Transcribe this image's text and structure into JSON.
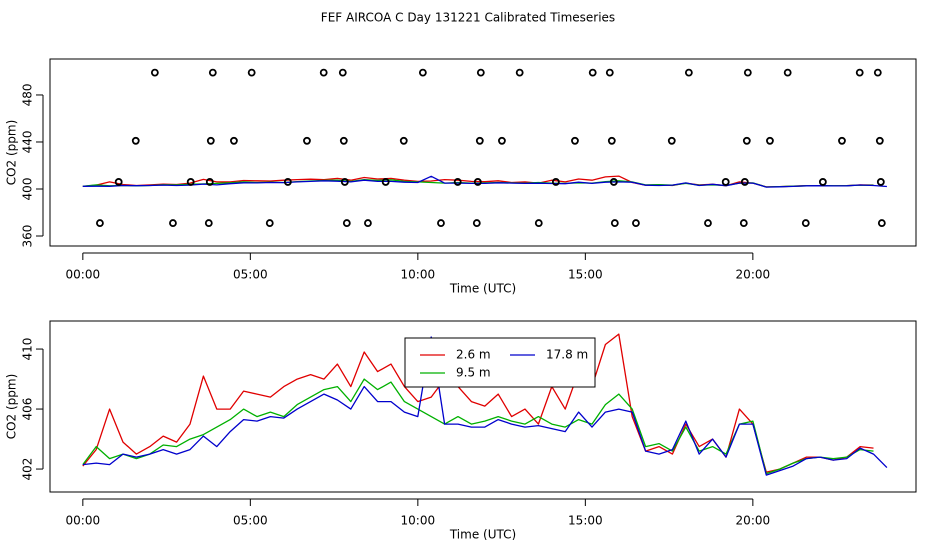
{
  "chart_data": [
    {
      "type": "line",
      "title": "FEF AIRCOA C  Day 131221  Calibrated Timeseries",
      "xlabel": "Time (UTC)",
      "ylabel": "CO2 (ppm)",
      "xlim": [
        -0.98,
        24.87
      ],
      "ylim": [
        351.5,
        510.6
      ],
      "xticks": [
        {
          "value": 0,
          "label": "00:00"
        },
        {
          "value": 5,
          "label": "05:00"
        },
        {
          "value": 10,
          "label": "10:00"
        },
        {
          "value": 15,
          "label": "15:00"
        },
        {
          "value": 20,
          "label": "20:00"
        }
      ],
      "yticks": [
        360,
        400,
        440,
        480
      ],
      "x": [
        0,
        0.4,
        0.8,
        1.2,
        1.6,
        2,
        2.4,
        2.8,
        3.2,
        3.6,
        4,
        4.4,
        4.8,
        5.2,
        5.6,
        6,
        6.4,
        6.8,
        7.2,
        7.6,
        8,
        8.4,
        8.8,
        9.2,
        9.6,
        10,
        10.4,
        10.8,
        11.2,
        11.6,
        12,
        12.4,
        12.8,
        13.2,
        13.6,
        14,
        14.4,
        14.8,
        15.2,
        15.6,
        16,
        16.4,
        16.8,
        17.2,
        17.6,
        18,
        18.4,
        18.8,
        19.2,
        19.6,
        20,
        20.4,
        20.8,
        21.2,
        21.6,
        22,
        22.4,
        22.8,
        23.2,
        23.6,
        24
      ],
      "series": [
        {
          "color": "#e00000",
          "values": [
            402.2,
            403.3,
            406.0,
            403.8,
            403.0,
            403.5,
            404.2,
            403.8,
            405.0,
            408.2,
            406.0,
            406.0,
            407.2,
            407.0,
            406.8,
            407.5,
            408.0,
            408.3,
            408.0,
            409.0,
            407.5,
            409.8,
            408.5,
            409.0,
            407.5,
            406.5,
            406.8,
            408.0,
            407.5,
            406.5,
            406.2,
            407.0,
            405.5,
            406.0,
            405.0,
            407.5,
            406.0,
            408.5,
            407.5,
            410.3,
            411.0,
            405.5,
            403.2,
            403.5,
            403.0,
            405.0,
            403.5,
            404.0,
            402.8,
            406.0,
            405.0,
            401.8,
            402.0,
            402.4,
            402.8,
            402.8,
            402.6,
            402.8,
            403.5,
            403.4,
            null
          ]
        },
        {
          "color": "#00b000",
          "values": [
            402.3,
            403.5,
            402.7,
            403.0,
            402.7,
            403.0,
            403.6,
            403.5,
            404.0,
            404.3,
            404.8,
            405.3,
            406.0,
            405.5,
            405.8,
            405.5,
            406.3,
            406.8,
            407.3,
            407.5,
            406.5,
            408.0,
            407.3,
            407.8,
            406.5,
            406.0,
            405.5,
            405.0,
            405.5,
            405.0,
            405.2,
            405.5,
            405.2,
            405.0,
            405.5,
            405.0,
            404.8,
            405.3,
            405.0,
            406.3,
            407.0,
            406.0,
            403.5,
            403.7,
            403.2,
            404.8,
            403.2,
            403.5,
            403.0,
            405.0,
            405.2,
            401.7,
            402.0,
            402.4,
            402.7,
            402.8,
            402.7,
            402.8,
            403.3,
            403.2,
            null
          ]
        },
        {
          "color": "#0000cc",
          "values": [
            402.3,
            402.4,
            402.3,
            403.0,
            402.8,
            403.0,
            403.3,
            403.0,
            403.3,
            404.2,
            403.5,
            404.5,
            405.3,
            405.2,
            405.5,
            405.4,
            406.0,
            406.5,
            407.0,
            406.6,
            406.0,
            407.5,
            406.5,
            406.5,
            405.8,
            405.5,
            410.8,
            405.0,
            405.0,
            404.8,
            404.8,
            405.3,
            405.0,
            404.8,
            404.9,
            404.7,
            404.5,
            405.8,
            404.8,
            405.8,
            406.0,
            405.8,
            403.2,
            403.0,
            403.3,
            405.2,
            403.0,
            404.0,
            402.8,
            405.0,
            405.0,
            401.6,
            401.9,
            402.2,
            402.7,
            402.8,
            402.6,
            402.7,
            403.4,
            403.0,
            402.1
          ]
        }
      ],
      "points": {
        "x": [
          2.15,
          3.88,
          5.04,
          7.19,
          7.76,
          10.15,
          11.88,
          13.04,
          15.22,
          15.73,
          18.09,
          19.85,
          21.04,
          23.19,
          23.73,
          1.58,
          3.82,
          4.51,
          6.69,
          7.79,
          9.58,
          11.85,
          12.51,
          14.69,
          15.79,
          17.58,
          19.82,
          20.51,
          22.66,
          23.79,
          1.07,
          3.22,
          3.79,
          6.12,
          7.82,
          9.04,
          11.19,
          11.79,
          14.12,
          15.85,
          19.19,
          19.76,
          22.09,
          23.82,
          0.51,
          2.69,
          3.76,
          5.58,
          7.88,
          8.51,
          10.69,
          11.76,
          13.61,
          15.88,
          16.51,
          18.66,
          19.73,
          21.58,
          23.85
        ],
        "y": [
          499,
          499,
          499,
          499,
          499,
          499,
          499,
          499,
          499,
          499,
          499,
          499,
          499,
          499,
          499,
          441,
          441,
          441,
          441,
          441,
          441,
          441,
          441,
          441,
          441,
          441,
          441,
          441,
          441,
          441,
          406,
          406,
          406,
          406,
          406,
          406,
          406,
          406,
          406,
          406,
          406,
          406,
          406,
          406,
          371,
          371,
          371,
          371,
          371,
          371,
          371,
          371,
          371,
          371,
          371,
          371,
          371,
          371,
          371
        ]
      }
    },
    {
      "type": "line",
      "xlabel": "Time (UTC)",
      "ylabel": "CO2 (ppm)",
      "legend": "top",
      "xlim": [
        -0.98,
        24.87
      ],
      "ylim": [
        400.47,
        411.87
      ],
      "xticks": [
        {
          "value": 0,
          "label": "00:00"
        },
        {
          "value": 5,
          "label": "05:00"
        },
        {
          "value": 10,
          "label": "10:00"
        },
        {
          "value": 15,
          "label": "15:00"
        },
        {
          "value": 20,
          "label": "20:00"
        }
      ],
      "yticks": [
        402,
        406,
        410
      ],
      "x": [
        0,
        0.4,
        0.8,
        1.2,
        1.6,
        2,
        2.4,
        2.8,
        3.2,
        3.6,
        4,
        4.4,
        4.8,
        5.2,
        5.6,
        6,
        6.4,
        6.8,
        7.2,
        7.6,
        8,
        8.4,
        8.8,
        9.2,
        9.6,
        10,
        10.4,
        10.8,
        11.2,
        11.6,
        12,
        12.4,
        12.8,
        13.2,
        13.6,
        14,
        14.4,
        14.8,
        15.2,
        15.6,
        16,
        16.4,
        16.8,
        17.2,
        17.6,
        18,
        18.4,
        18.8,
        19.2,
        19.6,
        20,
        20.4,
        20.8,
        21.2,
        21.6,
        22,
        22.4,
        22.8,
        23.2,
        23.6,
        24
      ],
      "series": [
        {
          "name": "2.6 m",
          "color": "#e00000",
          "values": [
            402.2,
            403.3,
            406.0,
            403.8,
            403.0,
            403.5,
            404.2,
            403.8,
            405.0,
            408.2,
            406.0,
            406.0,
            407.2,
            407.0,
            406.8,
            407.5,
            408.0,
            408.3,
            408.0,
            409.0,
            407.5,
            409.8,
            408.5,
            409.0,
            407.5,
            406.5,
            406.8,
            408.0,
            407.5,
            406.5,
            406.2,
            407.0,
            405.5,
            406.0,
            405.0,
            407.5,
            406.0,
            408.5,
            407.5,
            410.3,
            411.0,
            405.5,
            403.2,
            403.5,
            403.0,
            405.0,
            403.5,
            404.0,
            402.8,
            406.0,
            405.0,
            401.8,
            402.0,
            402.4,
            402.8,
            402.8,
            402.6,
            402.8,
            403.5,
            403.4,
            null
          ]
        },
        {
          "name": "9.5 m",
          "color": "#00b000",
          "values": [
            402.3,
            403.5,
            402.7,
            403.0,
            402.7,
            403.0,
            403.6,
            403.5,
            404.0,
            404.3,
            404.8,
            405.3,
            406.0,
            405.5,
            405.8,
            405.5,
            406.3,
            406.8,
            407.3,
            407.5,
            406.5,
            408.0,
            407.3,
            407.8,
            406.5,
            406.0,
            405.5,
            405.0,
            405.5,
            405.0,
            405.2,
            405.5,
            405.2,
            405.0,
            405.5,
            405.0,
            404.8,
            405.3,
            405.0,
            406.3,
            407.0,
            406.0,
            403.5,
            403.7,
            403.2,
            404.8,
            403.2,
            403.5,
            403.0,
            405.0,
            405.2,
            401.7,
            402.0,
            402.4,
            402.7,
            402.8,
            402.7,
            402.8,
            403.3,
            403.2,
            null
          ]
        },
        {
          "name": "17.8 m",
          "color": "#0000cc",
          "values": [
            402.3,
            402.4,
            402.3,
            403.0,
            402.8,
            403.0,
            403.3,
            403.0,
            403.3,
            404.2,
            403.5,
            404.5,
            405.3,
            405.2,
            405.5,
            405.4,
            406.0,
            406.5,
            407.0,
            406.6,
            406.0,
            407.5,
            406.5,
            406.5,
            405.8,
            405.5,
            410.8,
            405.0,
            405.0,
            404.8,
            404.8,
            405.3,
            405.0,
            404.8,
            404.9,
            404.7,
            404.5,
            405.8,
            404.8,
            405.8,
            406.0,
            405.8,
            403.2,
            403.0,
            403.3,
            405.2,
            403.0,
            404.0,
            402.8,
            405.0,
            405.0,
            401.6,
            401.9,
            402.2,
            402.7,
            402.8,
            402.6,
            402.7,
            403.4,
            403.0,
            402.1
          ]
        }
      ]
    }
  ]
}
